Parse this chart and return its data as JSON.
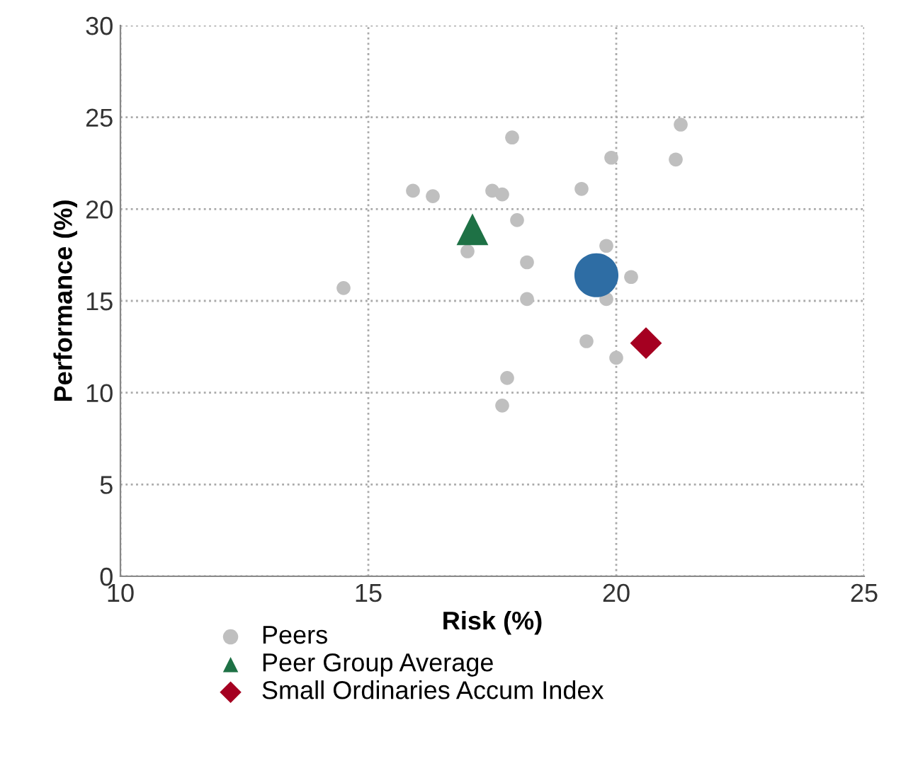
{
  "chart_data": {
    "type": "scatter",
    "xlabel": "Risk (%)",
    "ylabel": "Performance (%)",
    "xlim": [
      10,
      25
    ],
    "xticks": [
      10,
      15,
      20,
      25
    ],
    "ylim": [
      0,
      30
    ],
    "yticks": [
      0,
      5,
      10,
      15,
      20,
      25,
      30
    ],
    "grid": true,
    "legend": "bottom",
    "series": [
      {
        "name": "Peers",
        "color": "#bfbfbf",
        "marker": "circle",
        "x": [
          14.5,
          15.9,
          16.3,
          17.0,
          17.5,
          17.7,
          17.9,
          18.0,
          18.2,
          18.2,
          17.8,
          17.7,
          19.3,
          19.9,
          19.8,
          19.8,
          19.4,
          20.0,
          20.3,
          21.2,
          21.3
        ],
        "values": [
          15.7,
          21.0,
          20.7,
          17.7,
          21.0,
          20.8,
          23.9,
          19.4,
          17.1,
          15.1,
          10.8,
          9.3,
          21.1,
          22.8,
          18.0,
          15.1,
          12.8,
          11.9,
          16.3,
          22.7,
          24.6
        ]
      },
      {
        "name": "Peer Group Average",
        "color": "#1e7145",
        "marker": "triangle",
        "x": [
          17.1
        ],
        "values": [
          18.9
        ]
      },
      {
        "color": "#2e6da4",
        "marker": "circle",
        "x": [
          19.6
        ],
        "values": [
          16.4
        ]
      },
      {
        "name": "Small Ordinaries Accum Index",
        "color": "#a50021",
        "marker": "diamond",
        "x": [
          20.6
        ],
        "values": [
          12.7
        ]
      }
    ]
  }
}
